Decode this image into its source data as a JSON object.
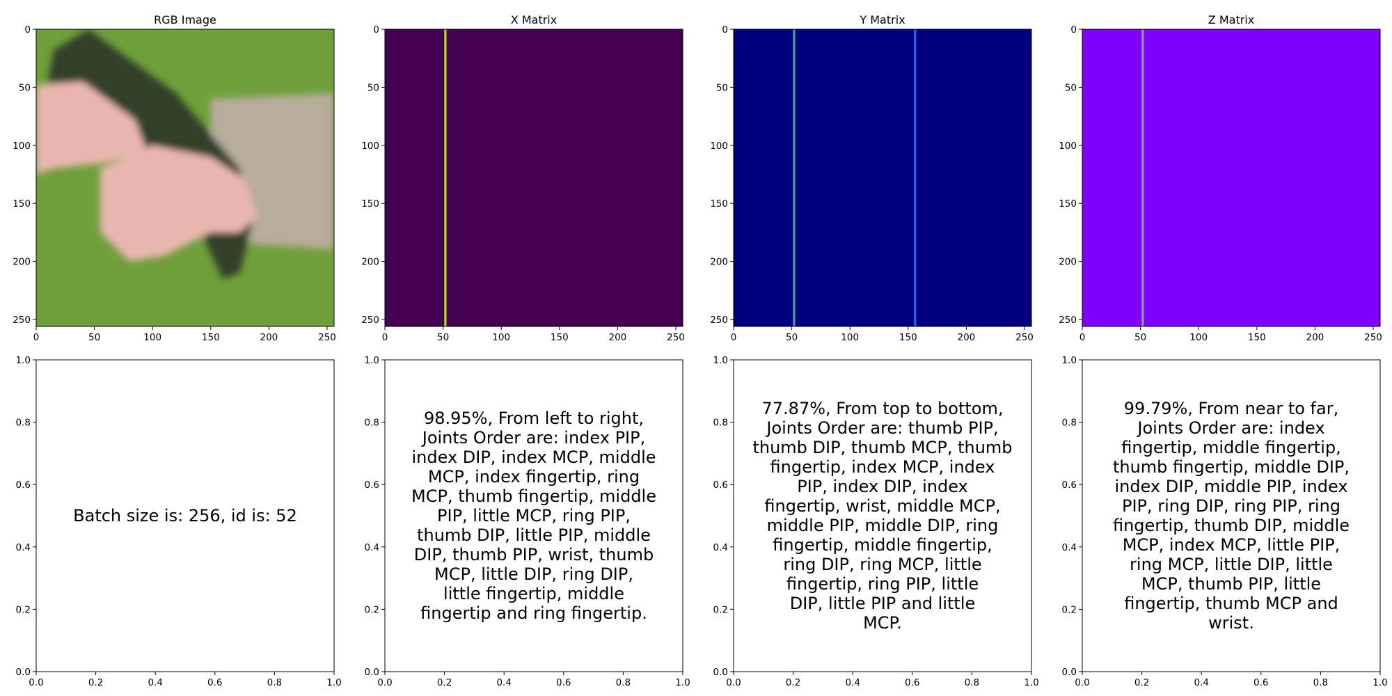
{
  "chart_data": [
    {
      "type": "image",
      "title": "RGB Image",
      "xlim": [
        0,
        256
      ],
      "ylim": [
        256,
        0
      ],
      "xticks": [
        0,
        50,
        100,
        150,
        200,
        250
      ],
      "yticks": [
        0,
        50,
        100,
        150,
        200,
        250
      ],
      "content": "photo",
      "colors": {
        "background": "#6f9f3a",
        "skin": "#e8b6ae",
        "device": "#33412b",
        "sleeve": "#b8ac9b"
      }
    },
    {
      "type": "heatmap",
      "title": "X Matrix",
      "xlim": [
        0,
        256
      ],
      "ylim": [
        256,
        0
      ],
      "xticks": [
        0,
        50,
        100,
        150,
        200,
        250
      ],
      "yticks": [
        0,
        50,
        100,
        150,
        200,
        250
      ],
      "background_color": "#440154",
      "lines": [
        {
          "x": 52,
          "color": "#b5de2b"
        }
      ]
    },
    {
      "type": "heatmap",
      "title": "Y Matrix",
      "xlim": [
        0,
        256
      ],
      "ylim": [
        256,
        0
      ],
      "xticks": [
        0,
        50,
        100,
        150,
        200,
        250
      ],
      "yticks": [
        0,
        50,
        100,
        150,
        200,
        250
      ],
      "background_color": "#00007f",
      "lines": [
        {
          "x": 52,
          "color": "#3ba3a0"
        },
        {
          "x": 156,
          "color": "#1a68ff"
        }
      ]
    },
    {
      "type": "heatmap",
      "title": "Z Matrix",
      "xlim": [
        0,
        256
      ],
      "ylim": [
        256,
        0
      ],
      "xticks": [
        0,
        50,
        100,
        150,
        200,
        250
      ],
      "yticks": [
        0,
        50,
        100,
        150,
        200,
        250
      ],
      "background_color": "#7f00ff",
      "lines": [
        {
          "x": 52,
          "color": "#9a8fb0"
        }
      ]
    },
    {
      "type": "text",
      "title": "",
      "xlim": [
        0,
        1
      ],
      "ylim": [
        0,
        1
      ],
      "xticks": [
        "0.0",
        "0.2",
        "0.4",
        "0.6",
        "0.8",
        "1.0"
      ],
      "yticks": [
        "0.0",
        "0.2",
        "0.4",
        "0.6",
        "0.8",
        "1.0"
      ],
      "lines": [
        "Batch size is: 256, id is: 52"
      ]
    },
    {
      "type": "text",
      "title": "",
      "xlim": [
        0,
        1
      ],
      "ylim": [
        0,
        1
      ],
      "xticks": [
        "0.0",
        "0.2",
        "0.4",
        "0.6",
        "0.8",
        "1.0"
      ],
      "yticks": [
        "0.0",
        "0.2",
        "0.4",
        "0.6",
        "0.8",
        "1.0"
      ],
      "lines": [
        "98.95%, From left to right,",
        "Joints Order are: index PIP,",
        "index DIP, index MCP, middle",
        "MCP, index fingertip, ring",
        "MCP, thumb fingertip, middle",
        "PIP, little MCP, ring PIP,",
        "thumb DIP, little PIP, middle",
        "DIP, thumb PIP, wrist, thumb",
        "MCP, little DIP, ring DIP,",
        "little fingertip, middle",
        "fingertip and ring fingertip."
      ]
    },
    {
      "type": "text",
      "title": "",
      "xlim": [
        0,
        1
      ],
      "ylim": [
        0,
        1
      ],
      "xticks": [
        "0.0",
        "0.2",
        "0.4",
        "0.6",
        "0.8",
        "1.0"
      ],
      "yticks": [
        "0.0",
        "0.2",
        "0.4",
        "0.6",
        "0.8",
        "1.0"
      ],
      "lines": [
        "77.87%, From top to bottom,",
        "Joints Order are: thumb PIP,",
        "thumb DIP, thumb MCP, thumb",
        "fingertip, index MCP, index",
        "PIP, index DIP, index",
        "fingertip, wrist, middle MCP,",
        "middle PIP, middle DIP, ring",
        "fingertip, middle fingertip,",
        "ring DIP, ring MCP, little",
        "fingertip, ring PIP, little",
        "DIP, little PIP and little",
        "MCP."
      ]
    },
    {
      "type": "text",
      "title": "",
      "xlim": [
        0,
        1
      ],
      "ylim": [
        0,
        1
      ],
      "xticks": [
        "0.0",
        "0.2",
        "0.4",
        "0.6",
        "0.8",
        "1.0"
      ],
      "yticks": [
        "0.0",
        "0.2",
        "0.4",
        "0.6",
        "0.8",
        "1.0"
      ],
      "lines": [
        "99.79%, From near to far,",
        "Joints Order are: index",
        "fingertip, middle fingertip,",
        "thumb fingertip, middle DIP,",
        "index DIP, middle PIP, index",
        "PIP, ring DIP, ring PIP, ring",
        "fingertip, thumb DIP, middle",
        "MCP, index MCP, little PIP,",
        "ring MCP, little DIP, little",
        "MCP, thumb PIP, little",
        "fingertip, thumb MCP and",
        "wrist."
      ]
    }
  ]
}
